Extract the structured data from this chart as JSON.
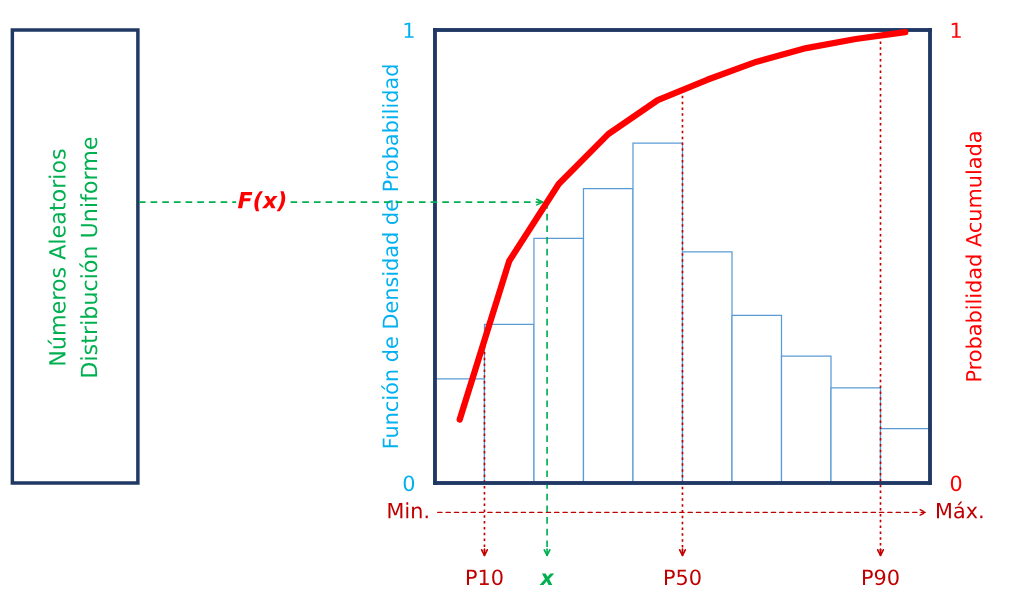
{
  "chart_data": {
    "type": "bar",
    "categories": [
      null,
      null,
      null,
      null,
      null,
      null,
      null,
      null,
      null,
      null
    ],
    "values": [
      0.23,
      0.35,
      0.54,
      0.65,
      0.75,
      0.51,
      0.37,
      0.28,
      0.21,
      0.12
    ],
    "color": "#5b9bd5",
    "ylim": [
      0,
      1
    ],
    "yticks": [
      0,
      1
    ],
    "y2lim": [
      0,
      1
    ],
    "y2ticks": [
      0,
      1
    ],
    "ylabel": "Función de Densidad de Probabilidad",
    "y2label": "Probabilidad Acumulada",
    "series": [
      {
        "type": "line",
        "axis": "y2",
        "color": "#ff0000",
        "values": [
          0.14,
          0.49,
          0.66,
          0.77,
          0.845,
          0.89,
          0.93,
          0.96,
          0.98,
          0.995
        ]
      }
    ],
    "ref_lines": [
      {
        "axis": "y2",
        "value": 0.62,
        "label": "F(x)",
        "color": "#00b050",
        "line_style": "dashed"
      }
    ],
    "annotations": [
      "Números Aleatorios\nDistribución Uniforme",
      "Min.",
      "Máx.",
      "P10",
      "x",
      "P50",
      "P90"
    ],
    "legend": false
  }
}
